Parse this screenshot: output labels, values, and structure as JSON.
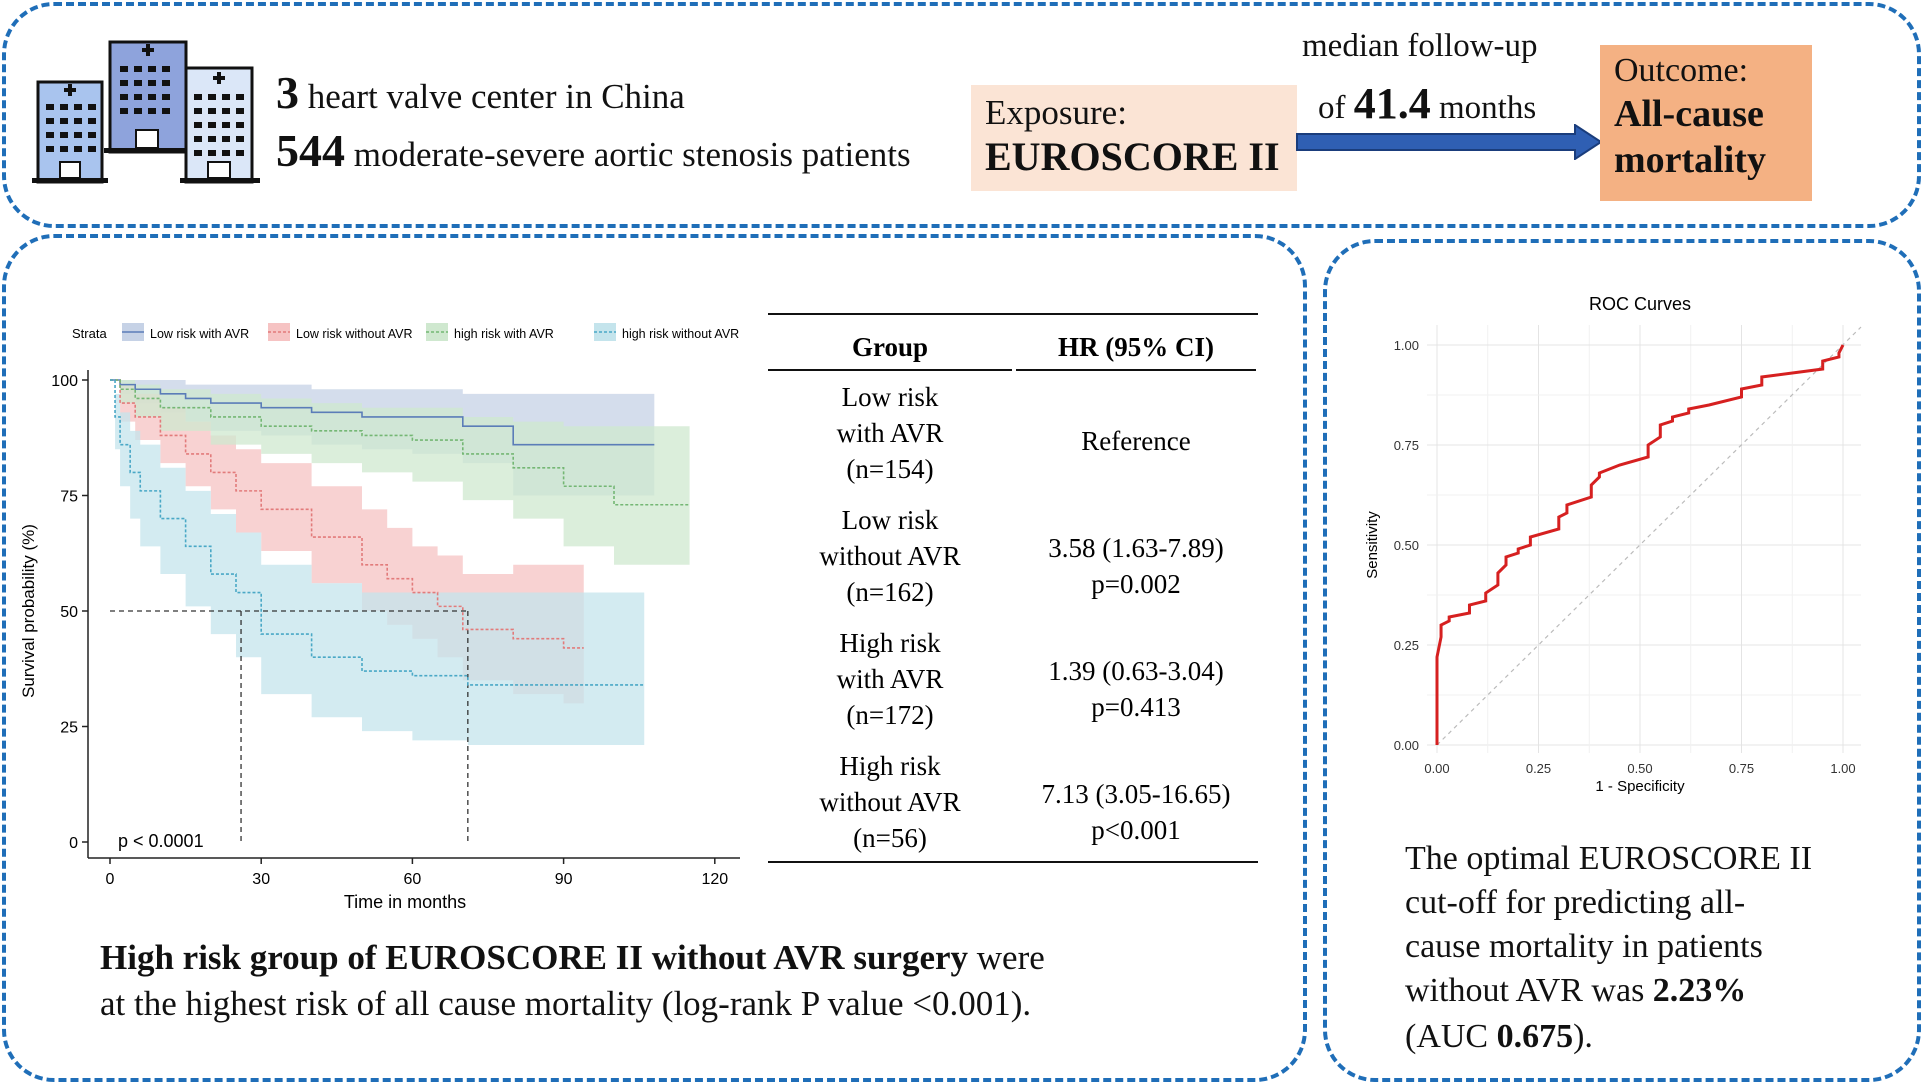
{
  "header": {
    "centers_number": "3",
    "centers_text": "heart valve center in China",
    "patients_number": "544",
    "patients_text": "moderate-severe aortic stenosis patients",
    "exposure_label": "Exposure:",
    "exposure_value": "EUROSCORE II",
    "followup_line1": "median follow-up",
    "followup_prefix": "of",
    "followup_number": "41.4",
    "followup_unit": "months",
    "outcome_label": "Outcome:",
    "outcome_value_line1": "All-cause",
    "outcome_value_line2": "mortality"
  },
  "colors": {
    "panel_border": "#1f6eb8",
    "exposure_bg": "#fbe4d5",
    "outcome_bg": "#f4b183",
    "arrow": "#2f5fb3",
    "roc_line": "#d62020"
  },
  "hr_table": {
    "headers": [
      "Group",
      "HR (95% CI)"
    ],
    "rows": [
      {
        "group": [
          "Low risk",
          "with AVR",
          "(n=154)"
        ],
        "hr": [
          "Reference"
        ]
      },
      {
        "group": [
          "Low risk",
          "without AVR",
          "(n=162)"
        ],
        "hr": [
          "3.58 (1.63-7.89)",
          "p=0.002"
        ]
      },
      {
        "group": [
          "High risk",
          "with AVR",
          "(n=172)"
        ],
        "hr": [
          "1.39 (0.63-3.04)",
          "p=0.413"
        ]
      },
      {
        "group": [
          "High risk",
          "without AVR",
          "(n=56)"
        ],
        "hr": [
          "7.13 (3.05-16.65)",
          "p<0.001"
        ]
      }
    ]
  },
  "conclusion_left": {
    "bold": "High risk group of EUROSCORE II without AVR surgery",
    "rest": " were",
    "line2": "at the highest risk of all cause mortality (log-rank P value <0.001)."
  },
  "conclusion_right": {
    "line1": "The optimal EUROSCORE II",
    "line2": "cut-off for predicting all-",
    "line3": "cause mortality in patients",
    "line4_prefix": "without AVR was ",
    "line4_bold": "2.23%",
    "line5_prefix": "(AUC ",
    "line5_bold": "0.675",
    "line5_suffix": ")."
  },
  "chart_data": [
    {
      "type": "line",
      "subtype": "kaplan-meier",
      "xlabel": "Time in months",
      "ylabel": "Survival probability (%)",
      "xlim": [
        0,
        125
      ],
      "ylim": [
        0,
        100
      ],
      "xticks": [
        "0",
        "30",
        "60",
        "90",
        "120"
      ],
      "yticks": [
        "0",
        "25",
        "50",
        "75",
        "100"
      ],
      "legend_title": "Strata",
      "legend_position": "top",
      "annotation": "p < 0.0001",
      "median_lines": [
        26,
        71
      ],
      "series": [
        {
          "name": "Low risk with AVR",
          "color": "#5b7db8",
          "fill": "#c6d2e6",
          "x": [
            0,
            2,
            5,
            10,
            15,
            20,
            30,
            40,
            50,
            60,
            70,
            80,
            90,
            108
          ],
          "y": [
            100,
            99,
            98,
            97,
            96,
            95,
            94,
            93,
            92,
            92,
            90,
            86,
            86,
            86
          ],
          "lower": [
            100,
            97,
            95,
            93,
            91,
            89,
            88,
            86,
            85,
            84,
            82,
            75,
            75,
            75
          ],
          "upper": [
            100,
            100,
            100,
            100,
            99,
            99,
            99,
            98,
            98,
            98,
            97,
            97,
            97,
            97
          ]
        },
        {
          "name": "Low risk without AVR",
          "color": "#e27b7b",
          "fill": "#f6c3c3",
          "x": [
            0,
            2,
            5,
            10,
            15,
            20,
            25,
            30,
            40,
            50,
            55,
            60,
            65,
            70,
            80,
            90,
            94
          ],
          "y": [
            100,
            95,
            92,
            88,
            84,
            80,
            76,
            72,
            66,
            60,
            57,
            54,
            51,
            46,
            44,
            42,
            42
          ],
          "lower": [
            100,
            91,
            87,
            82,
            77,
            72,
            67,
            63,
            56,
            50,
            47,
            44,
            40,
            35,
            32,
            30,
            30
          ],
          "upper": [
            100,
            99,
            97,
            94,
            91,
            88,
            85,
            82,
            77,
            72,
            68,
            64,
            62,
            58,
            60,
            60,
            60
          ]
        },
        {
          "name": "high risk with AVR",
          "color": "#74b774",
          "fill": "#cfe8cf",
          "x": [
            0,
            2,
            5,
            10,
            20,
            30,
            40,
            50,
            60,
            70,
            80,
            90,
            100,
            115
          ],
          "y": [
            100,
            98,
            96,
            94,
            92,
            90,
            89,
            88,
            87,
            84,
            81,
            77,
            73,
            73
          ],
          "lower": [
            100,
            95,
            92,
            89,
            86,
            84,
            82,
            80,
            78,
            74,
            70,
            64,
            60,
            60
          ],
          "upper": [
            100,
            100,
            99,
            98,
            97,
            96,
            95,
            94,
            94,
            92,
            91,
            90,
            90,
            90
          ]
        },
        {
          "name": "high risk without AVR",
          "color": "#4aa8c6",
          "fill": "#c4e4ec",
          "x": [
            0,
            1,
            2,
            4,
            6,
            10,
            15,
            20,
            25,
            30,
            40,
            50,
            60,
            71,
            80,
            90,
            106
          ],
          "y": [
            100,
            92,
            86,
            80,
            76,
            70,
            64,
            58,
            54,
            45,
            40,
            37,
            36,
            34,
            34,
            34,
            34
          ],
          "lower": [
            100,
            85,
            77,
            70,
            64,
            58,
            51,
            45,
            40,
            32,
            27,
            24,
            22,
            21,
            21,
            21,
            21
          ],
          "upper": [
            100,
            97,
            93,
            89,
            86,
            81,
            76,
            71,
            67,
            60,
            56,
            54,
            54,
            54,
            54,
            54,
            54
          ]
        }
      ]
    },
    {
      "type": "line",
      "subtype": "roc",
      "title": "ROC Curves",
      "xlabel": "1 - Specificity",
      "ylabel": "Sensitivity",
      "xlim": [
        0,
        1
      ],
      "ylim": [
        0,
        1
      ],
      "xticks": [
        "0.00",
        "0.25",
        "0.50",
        "0.75",
        "1.00"
      ],
      "yticks": [
        "0.00",
        "0.25",
        "0.50",
        "0.75",
        "1.00"
      ],
      "grid": true,
      "diagonal": true,
      "series": [
        {
          "color": "#d62020",
          "x": [
            0,
            0,
            0.01,
            0.01,
            0.03,
            0.03,
            0.08,
            0.08,
            0.12,
            0.12,
            0.15,
            0.15,
            0.17,
            0.17,
            0.2,
            0.2,
            0.23,
            0.23,
            0.3,
            0.3,
            0.32,
            0.32,
            0.38,
            0.38,
            0.4,
            0.4,
            0.45,
            0.45,
            0.52,
            0.52,
            0.55,
            0.55,
            0.58,
            0.58,
            0.62,
            0.62,
            0.67,
            0.67,
            0.75,
            0.75,
            0.8,
            0.8,
            0.95,
            0.95,
            0.99,
            0.99,
            1.0
          ],
          "y": [
            0,
            0.22,
            0.27,
            0.3,
            0.31,
            0.32,
            0.33,
            0.35,
            0.36,
            0.38,
            0.4,
            0.43,
            0.45,
            0.47,
            0.48,
            0.49,
            0.5,
            0.52,
            0.54,
            0.57,
            0.58,
            0.6,
            0.62,
            0.65,
            0.67,
            0.68,
            0.7,
            0.7,
            0.72,
            0.75,
            0.77,
            0.8,
            0.81,
            0.82,
            0.83,
            0.84,
            0.85,
            0.85,
            0.87,
            0.89,
            0.9,
            0.92,
            0.94,
            0.96,
            0.97,
            0.98,
            1.0
          ]
        }
      ]
    }
  ]
}
